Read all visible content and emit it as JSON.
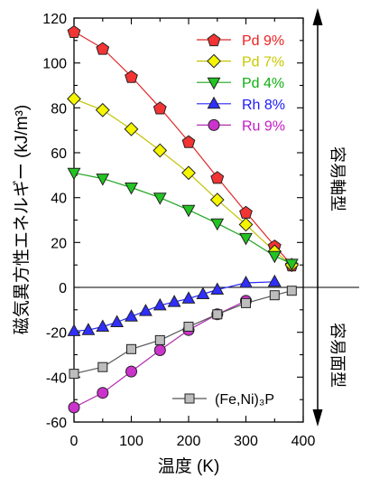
{
  "chart_data": {
    "type": "line",
    "xlabel": "温度 (K)",
    "ylabel": "磁気異方性エネルギー (kJ/m³)",
    "xlim": [
      0,
      400
    ],
    "ylim": [
      -60,
      120
    ],
    "xticks": [
      "0",
      "100",
      "200",
      "300",
      "400"
    ],
    "yticks": [
      "-60",
      "-40",
      "-20",
      "0",
      "20",
      "40",
      "60",
      "80",
      "100",
      "120"
    ],
    "grid": false,
    "marker_edge": "#222222",
    "reference_line": {
      "y": 0
    },
    "annotations": {
      "above_zero": "容易軸型",
      "below_zero": "容易面型"
    },
    "series": [
      {
        "name": "Pd 9%",
        "legend": "top-right",
        "marker": "pentagon",
        "color": "#e02828",
        "marker_fill": "#f23434",
        "label_color": "#f02020",
        "x": [
          0,
          50,
          100,
          150,
          200,
          250,
          300,
          350,
          380
        ],
        "y": [
          114,
          106.5,
          94,
          80,
          65,
          49,
          33.5,
          18.5,
          10
        ]
      },
      {
        "name": "Pd 7%",
        "legend": "top-right",
        "marker": "diamond",
        "color": "#c2c200",
        "marker_fill": "#f5f500",
        "label_color": "#c8c800",
        "x": [
          0,
          50,
          100,
          150,
          200,
          250,
          300,
          350,
          380
        ],
        "y": [
          84,
          79,
          70.5,
          61,
          51,
          39,
          28,
          16,
          10
        ]
      },
      {
        "name": "Pd 4%",
        "legend": "top-right",
        "marker": "triangle-down",
        "color": "#1fa51f",
        "marker_fill": "#22c422",
        "label_color": "#10b010",
        "x": [
          0,
          50,
          100,
          150,
          200,
          250,
          300,
          350,
          380
        ],
        "y": [
          51,
          48.5,
          44.5,
          40,
          34.5,
          28.5,
          22,
          14,
          10.5
        ]
      },
      {
        "name": "Rh 8%",
        "legend": "top-right",
        "marker": "triangle-up",
        "color": "#2525f5",
        "marker_fill": "#2f2fff",
        "label_color": "#1a1aff",
        "x": [
          0,
          25,
          50,
          75,
          100,
          125,
          150,
          175,
          200,
          225,
          250,
          300,
          350
        ],
        "y": [
          -19.5,
          -19,
          -17.5,
          -15.5,
          -13,
          -10.5,
          -8,
          -6.5,
          -5,
          -3,
          -1,
          2,
          2.5
        ]
      },
      {
        "name": "Ru 9%",
        "legend": "top-right",
        "marker": "circle",
        "color": "#b02db0",
        "marker_fill": "#cc33cc",
        "label_color": "#c41cc4",
        "x": [
          0,
          50,
          100,
          150,
          200,
          250,
          300
        ],
        "y": [
          -53.5,
          -47,
          -37.5,
          -28,
          -19,
          -12,
          -6
        ]
      },
      {
        "name": "(Fe,Ni)₃P",
        "legend": "bottom-right",
        "marker": "square",
        "color": "#555555",
        "marker_fill": "#bdbdbd",
        "label_color": "#000000",
        "x": [
          0,
          50,
          100,
          150,
          200,
          250,
          300,
          350,
          380
        ],
        "y": [
          -38.5,
          -35.5,
          -27.5,
          -23.5,
          -17.5,
          -12,
          -7,
          -3.5,
          -1.5
        ]
      }
    ]
  }
}
